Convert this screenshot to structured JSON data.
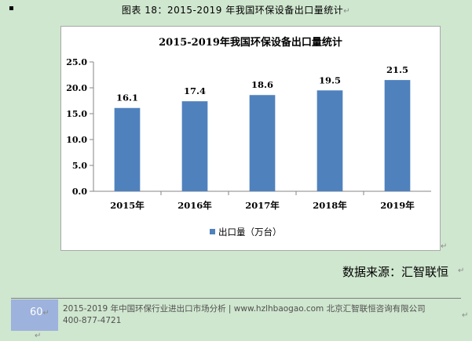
{
  "caption": "图表 18：2015-2019 年我国环保设备出口量统计",
  "paragraph_mark": "↵",
  "source": "数据来源：汇智联恒",
  "footer": {
    "page_number": "60",
    "line1": "2015-2019 年中国环保行业进出口市场分析 | www.hzlhbaogao.com 北京汇智联恒咨询有限公司",
    "line2": "400-877-4721"
  },
  "chart_data": {
    "type": "bar",
    "title": "2015-2019年我国环保设备出口量统计",
    "categories": [
      "2015年",
      "2016年",
      "2017年",
      "2018年",
      "2019年"
    ],
    "series": [
      {
        "name": "出口量（万台）",
        "values": [
          16.1,
          17.4,
          18.6,
          19.5,
          21.5
        ],
        "color": "#4f81bd"
      }
    ],
    "data_labels": [
      "16.1",
      "17.4",
      "18.6",
      "19.5",
      "21.5"
    ],
    "y_ticks": [
      "0.0",
      "5.0",
      "10.0",
      "15.0",
      "20.0",
      "25.0"
    ],
    "ylim": [
      0,
      25
    ],
    "grid": false,
    "legend": "bottom"
  }
}
